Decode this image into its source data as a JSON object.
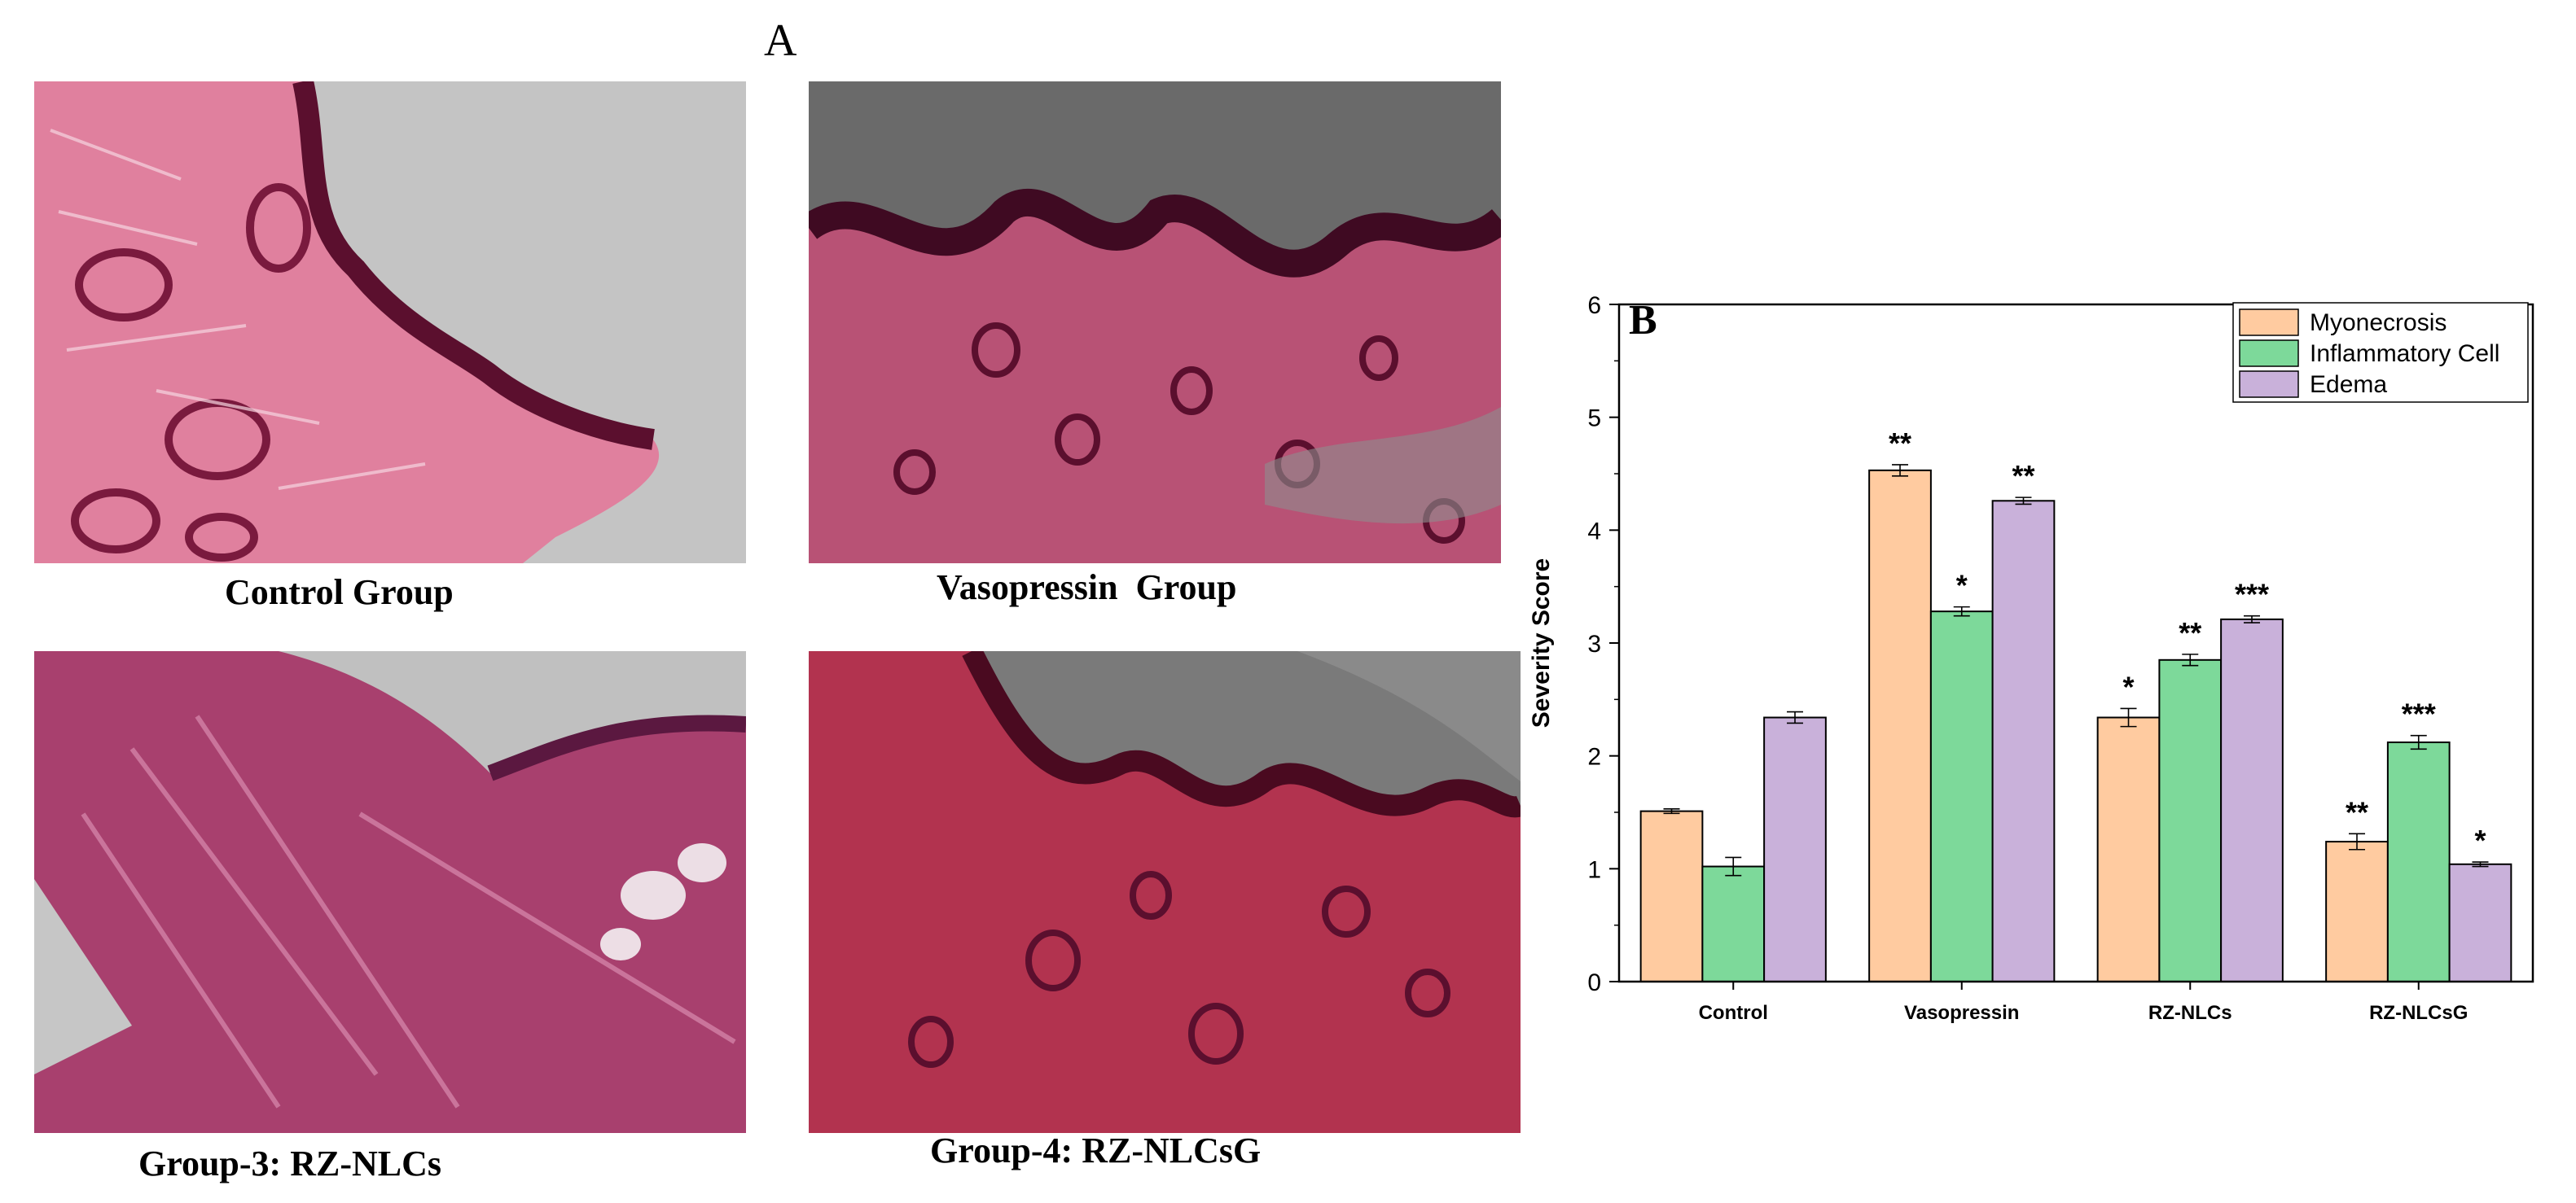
{
  "panel_a": {
    "letter": "A",
    "captions": {
      "control": "Control Group",
      "vasopressin": "Vasopressin  Group",
      "group3": "Group-3: RZ-NLCs",
      "group4": "Group-4: RZ-NLCsG"
    }
  },
  "colors": {
    "myonecrosis": "#FFCBA0",
    "inflammatory": "#7DD99A",
    "edema": "#C9B1DA",
    "tissue_pink": "#D8587E",
    "tissue_dark": "#5B0F2E",
    "background_gray": "#C2C2C2"
  },
  "chart_data": {
    "panel_letter": "B",
    "type": "bar",
    "categories": [
      "Control",
      "Vasopressin",
      "RZ-NLCs",
      "RZ-NLCsG"
    ],
    "ylabel": "Severity Score",
    "xlabel": "",
    "ylim": [
      0,
      6
    ],
    "yticks": [
      0,
      1,
      2,
      3,
      4,
      5,
      6
    ],
    "legend_position": "top-right",
    "series": [
      {
        "name": "Myonecrosis",
        "color": "#FFCBA0",
        "values": [
          1.51,
          4.53,
          2.34,
          1.24
        ],
        "errors": [
          0.02,
          0.05,
          0.08,
          0.07
        ],
        "significance": [
          "",
          "**",
          "*",
          "**"
        ]
      },
      {
        "name": "Inflammatory Cell",
        "color": "#7DD99A",
        "values": [
          1.02,
          3.28,
          2.85,
          2.12
        ],
        "errors": [
          0.08,
          0.04,
          0.05,
          0.06
        ],
        "significance": [
          "",
          "*",
          "**",
          "***"
        ]
      },
      {
        "name": "Edema",
        "color": "#C9B1DA",
        "values": [
          2.34,
          4.26,
          3.21,
          1.04
        ],
        "errors": [
          0.05,
          0.03,
          0.03,
          0.02
        ],
        "significance": [
          "",
          "**",
          "***",
          "*"
        ]
      }
    ]
  }
}
